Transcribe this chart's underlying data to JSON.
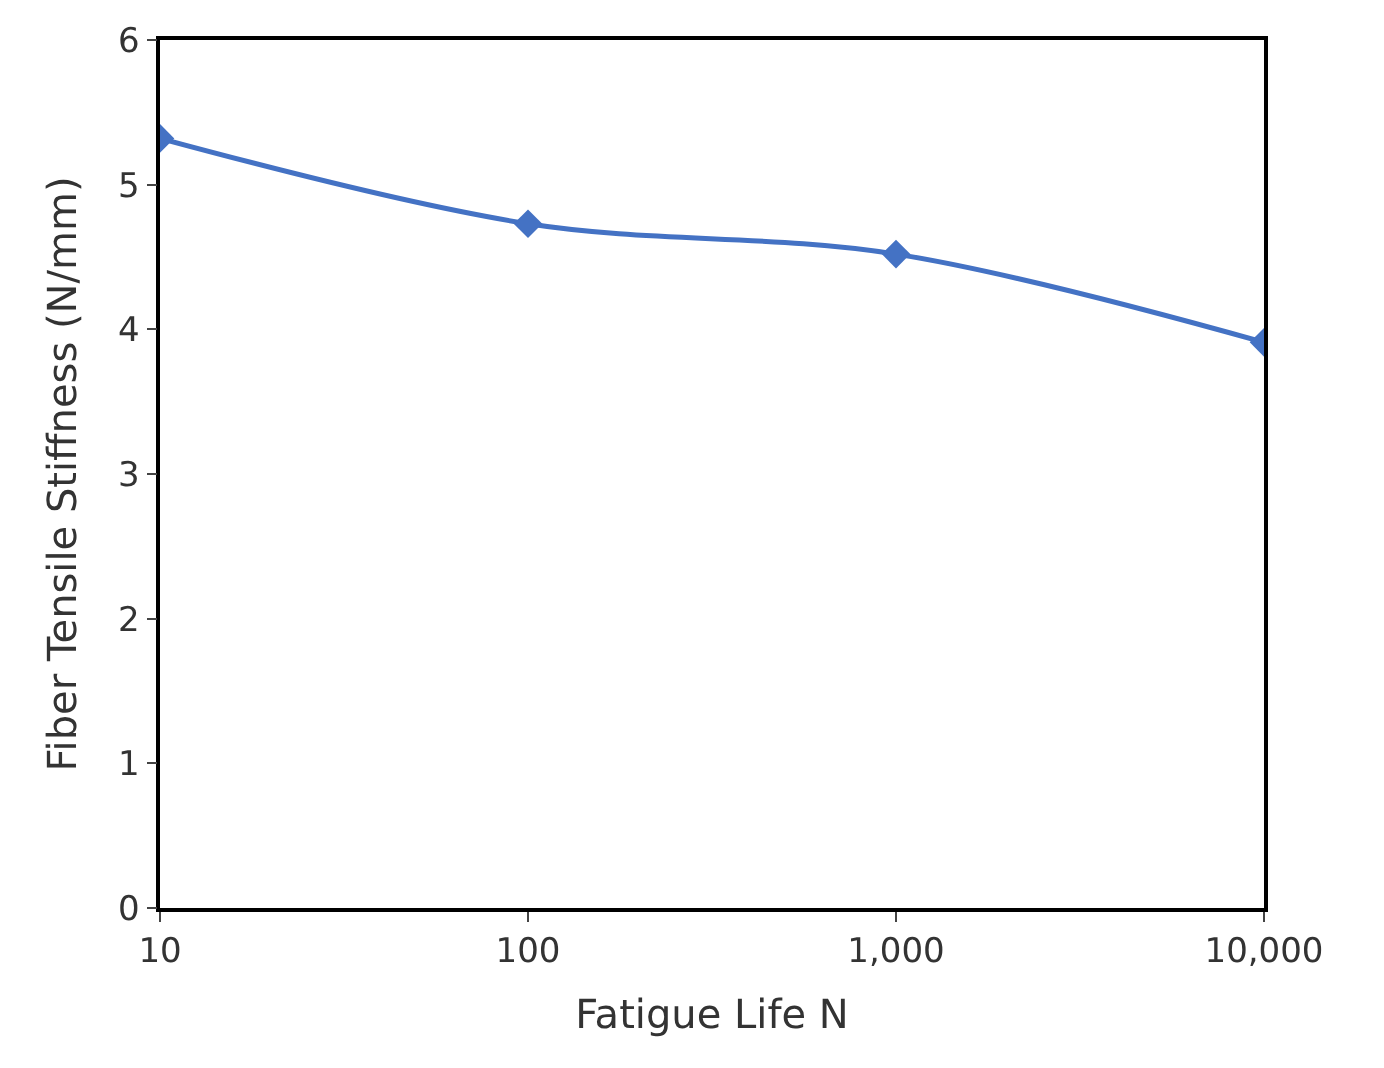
{
  "chart_data": {
    "type": "line",
    "xlabel": "Fatigue Life N",
    "ylabel": "Fiber Tensile Stiffness (N/mm)",
    "x": [
      10,
      100,
      1000,
      10000
    ],
    "series": [
      {
        "color": "#4472c4",
        "values": [
          5.32,
          4.73,
          4.52,
          3.91
        ]
      }
    ],
    "log": "x",
    "xlim": [
      10,
      10000
    ],
    "xticks": [
      10,
      100,
      {
        "value": 1000,
        "label": "1,000"
      },
      {
        "value": 10000,
        "label": "10,000"
      }
    ],
    "ylim": [
      0,
      6
    ],
    "yticks": [
      0,
      1,
      2,
      3,
      4,
      5,
      6
    ],
    "legend": false,
    "marker": "diamond",
    "line_style": "solid"
  }
}
